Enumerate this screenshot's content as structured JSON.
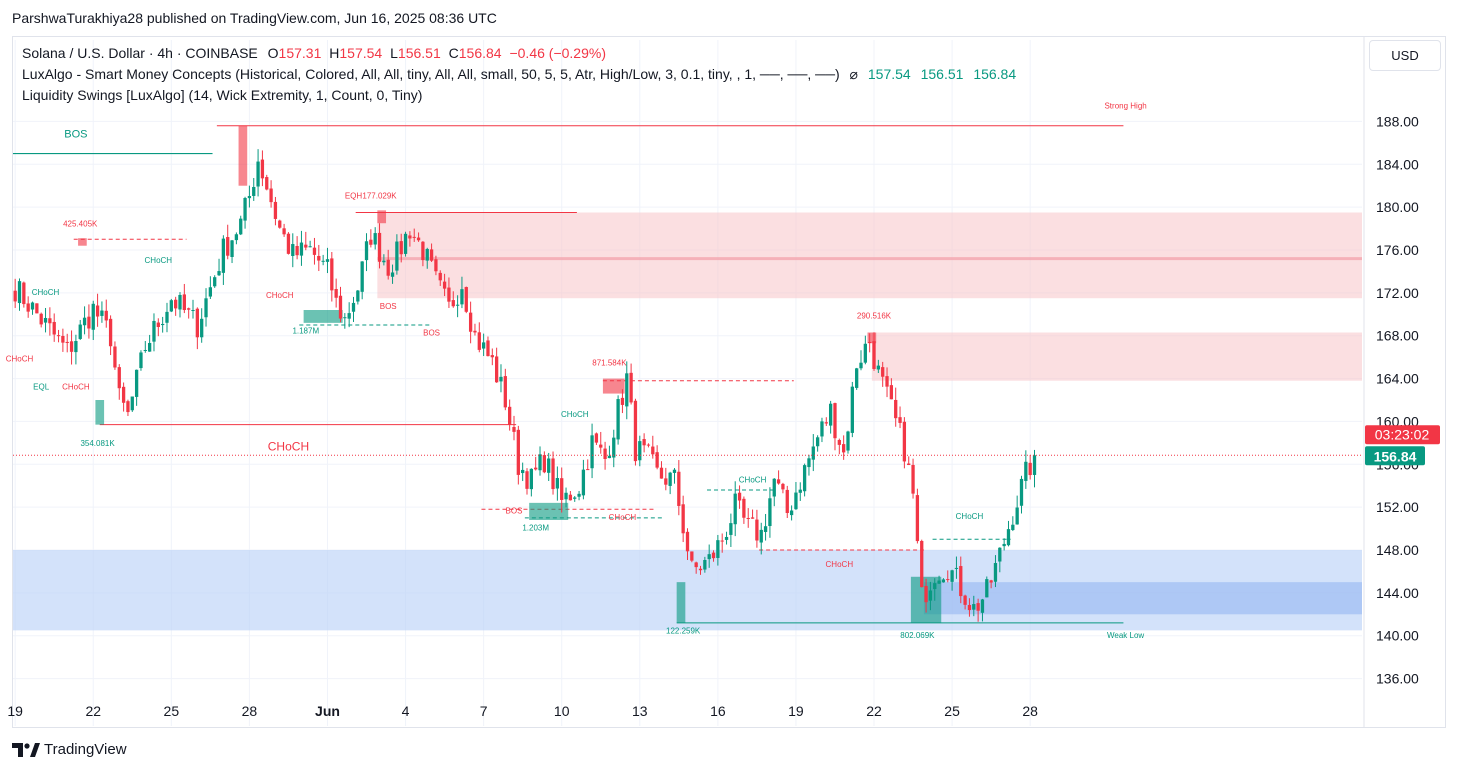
{
  "published_by": "ParshwaTurakhiya28 published on TradingView.com, Jun 16, 2025 08:36 UTC",
  "legend": {
    "symbol": "Solana / U.S. Dollar · 4h · COINBASE",
    "o_label": "O",
    "o_value": "157.31",
    "h_label": "H",
    "h_value": "157.54",
    "l_label": "L",
    "l_value": "156.51",
    "c_label": "C",
    "c_value": "156.84",
    "change": "−0.46 (−0.29%)",
    "indicator1": "LuxAlgo - Smart Money Concepts (Historical, Colored, All, All, tiny, All, All, small, 50, 5, 5, Atr, High/Low, 3, 0.1, tiny, , 1, ──, ──, ──)",
    "indicator1_sym": "⌀",
    "indicator1_values": [
      "157.54",
      "156.51",
      "156.84"
    ],
    "indicator2": "Liquidity Swings [LuxAlgo] (14, Wick Extremity, 1, Count, 0, Tiny)"
  },
  "currency_button": "USD",
  "brand": "TradingView",
  "colors": {
    "up": "#089981",
    "down": "#f23645",
    "supply": "#f7c5c8",
    "demand": "#bcd3f7",
    "grid": "#f0f3fa"
  },
  "chart_data": {
    "type": "candlestick",
    "symbol": "Solana / U.S. Dollar",
    "timeframe": "4h",
    "ylim": [
      134,
      190
    ],
    "y_ticks": [
      "188.00",
      "184.00",
      "180.00",
      "176.00",
      "172.00",
      "168.00",
      "164.00",
      "160.00",
      "156.00",
      "152.00",
      "148.00",
      "144.00",
      "140.00",
      "136.00"
    ],
    "x_ticks": [
      "19",
      "22",
      "25",
      "28",
      "Jun",
      "4",
      "7",
      "10",
      "13",
      "16",
      "19",
      "22",
      "25",
      "28"
    ],
    "last_price": "156.84",
    "countdown": "03:23:02",
    "close_path": [
      [
        0,
        172.5
      ],
      [
        7,
        169
      ],
      [
        12,
        166.5
      ],
      [
        18,
        170.5
      ],
      [
        22,
        168
      ],
      [
        24,
        162
      ],
      [
        26,
        160.5
      ],
      [
        30,
        167
      ],
      [
        36,
        171.5
      ],
      [
        42,
        169
      ],
      [
        48,
        176
      ],
      [
        52,
        178.5
      ],
      [
        54,
        181
      ],
      [
        56,
        184.5
      ],
      [
        58,
        182
      ],
      [
        61,
        178
      ],
      [
        64,
        175.5
      ],
      [
        68,
        176
      ],
      [
        70,
        175
      ],
      [
        72,
        174
      ],
      [
        74,
        171
      ],
      [
        76,
        169.5
      ],
      [
        79,
        172.5
      ],
      [
        82,
        177.5
      ],
      [
        86,
        174.5
      ],
      [
        88,
        175.5
      ],
      [
        91,
        178
      ],
      [
        94,
        176
      ],
      [
        97,
        173
      ],
      [
        100,
        170.5
      ],
      [
        103,
        173
      ],
      [
        106,
        168
      ],
      [
        110,
        165.5
      ],
      [
        113,
        162
      ],
      [
        116,
        156
      ],
      [
        119,
        154.5
      ],
      [
        122,
        156.5
      ],
      [
        126,
        152.5
      ],
      [
        130,
        154
      ],
      [
        133,
        158
      ],
      [
        136,
        156.5
      ],
      [
        139,
        161
      ],
      [
        141,
        164
      ],
      [
        143,
        157.5
      ],
      [
        146,
        156.5
      ],
      [
        148,
        155
      ],
      [
        152,
        154.5
      ],
      [
        156,
        146
      ],
      [
        160,
        147
      ],
      [
        163,
        149
      ],
      [
        166,
        152
      ],
      [
        169,
        150
      ],
      [
        172,
        149.5
      ],
      [
        175,
        154.5
      ],
      [
        178,
        151.5
      ],
      [
        182,
        155.5
      ],
      [
        185,
        158.5
      ],
      [
        188,
        161
      ],
      [
        191,
        157
      ],
      [
        194,
        165.5
      ],
      [
        197,
        167.5
      ],
      [
        199,
        164.5
      ],
      [
        202,
        161
      ],
      [
        205,
        157.5
      ],
      [
        207,
        153
      ],
      [
        209,
        143.5
      ],
      [
        212,
        146
      ],
      [
        215,
        146.5
      ],
      [
        218,
        144.5
      ],
      [
        221,
        142.5
      ],
      [
        224,
        144
      ],
      [
        227,
        147.5
      ],
      [
        230,
        151.5
      ],
      [
        233,
        155
      ],
      [
        235,
        156.8
      ]
    ],
    "extra_bars": 75,
    "zones": [
      {
        "kind": "supply",
        "label": "upper supply",
        "from": 84,
        "to": "end",
        "y1": 171.5,
        "y2": 179.5
      },
      {
        "kind": "supply",
        "label": "mid supply",
        "from": 198,
        "to": "end",
        "y1": 163.8,
        "y2": 168.3
      },
      {
        "kind": "demand",
        "label": "demand",
        "from": 0,
        "to": "end",
        "y1": 140.5,
        "y2": 148
      },
      {
        "kind": "demand2",
        "label": "inner demand",
        "from": 210,
        "to": "end",
        "y1": 142,
        "y2": 145
      }
    ],
    "annotations": [
      {
        "text": "BOS",
        "bar": 14,
        "price": 186.5,
        "color": "#089981",
        "size": 11
      },
      {
        "text": "Strong High",
        "bar": 256,
        "price": 189.2,
        "color": "#f23645",
        "size": 8
      },
      {
        "text": "EQH",
        "bar": 78,
        "price": 180.8,
        "color": "#f23645",
        "size": 8
      },
      {
        "text": "177.029K",
        "bar": 84,
        "price": 180.8,
        "color": "#f23645",
        "size": 8
      },
      {
        "text": "425.405K",
        "bar": 15,
        "price": 178.2,
        "color": "#f23645",
        "size": 8
      },
      {
        "text": "CHoCH",
        "bar": 33,
        "price": 174.8,
        "color": "#089981",
        "size": 8
      },
      {
        "text": "CHoCH",
        "bar": 7,
        "price": 171.8,
        "color": "#089981",
        "size": 8
      },
      {
        "text": "CHoCH",
        "bar": 61,
        "price": 171.5,
        "color": "#f23645",
        "size": 8
      },
      {
        "text": "BOS",
        "bar": 86,
        "price": 170.5,
        "color": "#f23645",
        "size": 8
      },
      {
        "text": "1.187M",
        "bar": 67,
        "price": 168.2,
        "color": "#089981",
        "size": 8
      },
      {
        "text": "BOS",
        "bar": 96,
        "price": 168,
        "color": "#f23645",
        "size": 8
      },
      {
        "text": "CHoCH",
        "bar": 1,
        "price": 165.6,
        "color": "#f23645",
        "size": 8
      },
      {
        "text": "EQL",
        "bar": 6,
        "price": 163,
        "color": "#089981",
        "size": 8
      },
      {
        "text": "CHoCH",
        "bar": 14,
        "price": 163,
        "color": "#f23645",
        "size": 8
      },
      {
        "text": "290.516K",
        "bar": 198,
        "price": 169.6,
        "color": "#f23645",
        "size": 8
      },
      {
        "text": "871.584K",
        "bar": 137,
        "price": 165.2,
        "color": "#f23645",
        "size": 8
      },
      {
        "text": "CHoCH",
        "bar": 129,
        "price": 160.4,
        "color": "#089981",
        "size": 8
      },
      {
        "text": "354.081K",
        "bar": 19,
        "price": 157.7,
        "color": "#089981",
        "size": 8
      },
      {
        "text": "CHoCH",
        "bar": 63,
        "price": 157.3,
        "color": "#f23645",
        "size": 12
      },
      {
        "text": "CHoCH",
        "bar": 170,
        "price": 154.3,
        "color": "#089981",
        "size": 8
      },
      {
        "text": "BOS",
        "bar": 115,
        "price": 151.4,
        "color": "#f23645",
        "size": 8
      },
      {
        "text": "CHoCH",
        "bar": 140,
        "price": 150.8,
        "color": "#f23645",
        "size": 8
      },
      {
        "text": "1.203M",
        "bar": 120,
        "price": 149.8,
        "color": "#089981",
        "size": 8
      },
      {
        "text": "CHoCH",
        "bar": 220,
        "price": 150.9,
        "color": "#089981",
        "size": 8
      },
      {
        "text": "CHoCH",
        "bar": 190,
        "price": 146.4,
        "color": "#f23645",
        "size": 8
      },
      {
        "text": "122.259K",
        "bar": 154,
        "price": 140.2,
        "color": "#089981",
        "size": 8
      },
      {
        "text": "802.069K",
        "bar": 208,
        "price": 139.8,
        "color": "#089981",
        "size": 8
      },
      {
        "text": "Weak Low",
        "bar": 256,
        "price": 139.8,
        "color": "#089981",
        "size": 8
      }
    ]
  }
}
